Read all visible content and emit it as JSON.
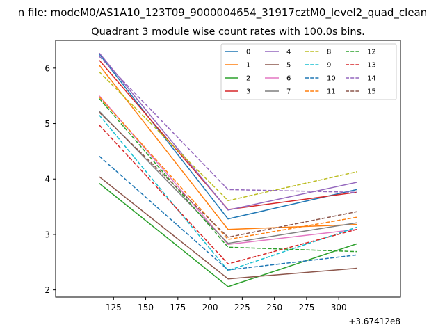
{
  "chart_data": {
    "type": "line",
    "suptitle": "n file: modeM0/AS1A10_123T09_9000004654_31917cztM0_level2_quad_clean",
    "title": "Quadrant 3 module wise count rates with 100.0s bins.",
    "xlabel": "",
    "ylabel": "",
    "x_offset_label": "+3.67412e8",
    "x": [
      114,
      214,
      314
    ],
    "xlim": [
      80,
      348
    ],
    "ylim": [
      1.87,
      6.5
    ],
    "xticks": [
      125,
      150,
      175,
      200,
      225,
      250,
      275,
      300
    ],
    "yticks": [
      2,
      3,
      4,
      5,
      6
    ],
    "legend_placement": "top-right",
    "legend_columns": 4,
    "series": [
      {
        "name": "0",
        "values": [
          6.25,
          3.28,
          3.81
        ],
        "color": "#1f77b4",
        "dash": false
      },
      {
        "name": "1",
        "values": [
          6.05,
          3.09,
          3.18
        ],
        "color": "#ff7f0e",
        "dash": false
      },
      {
        "name": "2",
        "values": [
          3.92,
          2.06,
          2.83
        ],
        "color": "#2ca02c",
        "dash": false
      },
      {
        "name": "3",
        "values": [
          6.14,
          3.45,
          3.76
        ],
        "color": "#d62728",
        "dash": false
      },
      {
        "name": "4",
        "values": [
          6.27,
          3.44,
          3.94
        ],
        "color": "#9467bd",
        "dash": false
      },
      {
        "name": "5",
        "values": [
          4.04,
          2.2,
          2.39
        ],
        "color": "#8c564b",
        "dash": false
      },
      {
        "name": "6",
        "values": [
          5.5,
          2.82,
          3.09
        ],
        "color": "#e377c2",
        "dash": false
      },
      {
        "name": "7",
        "values": [
          5.22,
          2.84,
          3.21
        ],
        "color": "#7f7f7f",
        "dash": false
      },
      {
        "name": "8",
        "values": [
          5.93,
          3.61,
          4.13
        ],
        "color": "#bcbd22",
        "dash": true
      },
      {
        "name": "9",
        "values": [
          5.15,
          2.35,
          3.13
        ],
        "color": "#17becf",
        "dash": true
      },
      {
        "name": "10",
        "values": [
          4.41,
          2.36,
          2.63
        ],
        "color": "#1f77b4",
        "dash": true
      },
      {
        "name": "11",
        "values": [
          5.48,
          2.91,
          3.31
        ],
        "color": "#ff7f0e",
        "dash": true
      },
      {
        "name": "12",
        "values": [
          5.45,
          2.77,
          2.69
        ],
        "color": "#2ca02c",
        "dash": true
      },
      {
        "name": "13",
        "values": [
          4.97,
          2.47,
          3.09
        ],
        "color": "#d62728",
        "dash": true
      },
      {
        "name": "14",
        "values": [
          6.21,
          3.81,
          3.76
        ],
        "color": "#9467bd",
        "dash": true
      },
      {
        "name": "15",
        "values": [
          5.2,
          2.95,
          3.41
        ],
        "color": "#8c564b",
        "dash": true
      }
    ]
  }
}
